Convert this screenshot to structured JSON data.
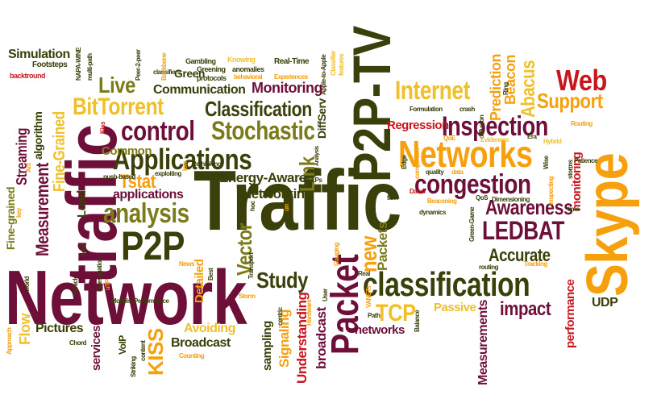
{
  "colors": {
    "dark_olive": "#3b3f0a",
    "maroon": "#6e0f3a",
    "orange": "#f5a00c",
    "gold": "#f0c02a",
    "red": "#c8161d",
    "olive": "#7b7b1a"
  },
  "cloud": {
    "words": [
      {
        "text": "Traffic",
        "c": "dark_olive"
      },
      {
        "text": "Network",
        "c": "maroon"
      },
      {
        "text": "traffic",
        "c": "maroon"
      },
      {
        "text": "P2P-TV",
        "c": "dark_olive"
      },
      {
        "text": "Skype",
        "c": "orange"
      },
      {
        "text": "Networks",
        "c": "orange"
      },
      {
        "text": "classification",
        "c": "dark_olive"
      },
      {
        "text": "P2P",
        "c": "dark_olive"
      },
      {
        "text": "Packet",
        "c": "maroon"
      },
      {
        "text": "Applications",
        "c": "dark_olive"
      },
      {
        "text": "control",
        "c": "maroon"
      },
      {
        "text": "congestion",
        "c": "maroon"
      },
      {
        "text": "Inspection",
        "c": "maroon"
      },
      {
        "text": "Stochastic",
        "c": "olive"
      },
      {
        "text": "BitTorrent",
        "c": "gold"
      },
      {
        "text": "Classification",
        "c": "dark_olive"
      },
      {
        "text": "analysis",
        "c": "olive"
      },
      {
        "text": "LEDBAT",
        "c": "maroon"
      },
      {
        "text": "Web",
        "c": "red"
      },
      {
        "text": "Support",
        "c": "orange"
      },
      {
        "text": "Internet",
        "c": "gold"
      },
      {
        "text": "Study",
        "c": "dark_olive"
      },
      {
        "text": "TCP",
        "c": "gold"
      },
      {
        "text": "impact",
        "c": "maroon"
      },
      {
        "text": "Awareness",
        "c": "maroon"
      },
      {
        "text": "Accurate",
        "c": "dark_olive"
      },
      {
        "text": "Abacus",
        "c": "gold"
      },
      {
        "text": "Tstat",
        "c": "orange"
      },
      {
        "text": "Live",
        "c": "olive"
      },
      {
        "text": "Vector",
        "c": "olive"
      },
      {
        "text": "Link",
        "c": "olive"
      },
      {
        "text": "new",
        "c": "orange"
      },
      {
        "text": "Measurement",
        "c": "maroon"
      },
      {
        "text": "Fine-Grained",
        "c": "gold"
      },
      {
        "text": "Streaming",
        "c": "maroon"
      },
      {
        "text": "Communication",
        "c": "dark_olive"
      },
      {
        "text": "Monitoring",
        "c": "maroon"
      },
      {
        "text": "Energy-Aware",
        "c": "dark_olive"
      },
      {
        "text": "Networking",
        "c": "dark_olive"
      },
      {
        "text": "applications",
        "c": "maroon"
      },
      {
        "text": "Common",
        "c": "olive"
      },
      {
        "text": "Simulation",
        "c": "dark_olive"
      },
      {
        "text": "Prediction",
        "c": "orange"
      },
      {
        "text": "Beacon",
        "c": "orange"
      },
      {
        "text": "Regression",
        "c": "red"
      },
      {
        "text": "monitoring",
        "c": "red"
      },
      {
        "text": "Skype-small",
        "c": "orange"
      },
      {
        "text": "KISS",
        "c": "orange"
      },
      {
        "text": "Broadcast",
        "c": "dark_olive"
      },
      {
        "text": "Avoiding",
        "c": "gold"
      },
      {
        "text": "Pictures",
        "c": "dark_olive"
      },
      {
        "text": "Flow",
        "c": "gold"
      },
      {
        "text": "networks",
        "c": "maroon"
      },
      {
        "text": "Passive",
        "c": "gold"
      },
      {
        "text": "UDP",
        "c": "dark_olive"
      },
      {
        "text": "Packets",
        "c": "olive"
      },
      {
        "text": "Signaling",
        "c": "orange"
      },
      {
        "text": "Understanding",
        "c": "red"
      },
      {
        "text": "broadcast",
        "c": "maroon"
      },
      {
        "text": "Measurements",
        "c": "maroon"
      },
      {
        "text": "performance",
        "c": "red"
      },
      {
        "text": "sampling",
        "c": "dark_olive"
      },
      {
        "text": "services",
        "c": "maroon"
      },
      {
        "text": "Detailed",
        "c": "orange"
      },
      {
        "text": "Load",
        "c": "dark_olive"
      },
      {
        "text": "Fine-grained",
        "c": "olive"
      },
      {
        "text": "algorithm",
        "c": "dark_olive"
      },
      {
        "text": "DiffServ",
        "c": "dark_olive"
      },
      {
        "text": "Green",
        "c": "dark_olive"
      },
      {
        "text": "VoIP",
        "c": "dark_olive"
      },
      {
        "text": "Footsteps",
        "c": "dark_olive"
      },
      {
        "text": "backtround",
        "c": "red"
      },
      {
        "text": "Real-Time",
        "c": "dark_olive"
      },
      {
        "text": "Gambling",
        "c": "dark_olive"
      },
      {
        "text": "Knowing",
        "c": "gold"
      },
      {
        "text": "Greening",
        "c": "dark_olive"
      },
      {
        "text": "anomalies",
        "c": "dark_olive"
      },
      {
        "text": "protocols",
        "c": "dark_olive"
      },
      {
        "text": "Experiences",
        "c": "orange"
      },
      {
        "text": "behavioral",
        "c": "orange"
      },
      {
        "text": "classifiers",
        "c": "dark_olive"
      },
      {
        "text": "Backbone",
        "c": "orange"
      },
      {
        "text": "Peer-2-peer",
        "c": "dark_olive"
      },
      {
        "text": "NAPA-WINE",
        "c": "dark_olive"
      },
      {
        "text": "multi-path",
        "c": "dark_olive"
      },
      {
        "text": "Apple-to-Apple",
        "c": "dark_olive"
      },
      {
        "text": "Classifier",
        "c": "gold"
      },
      {
        "text": "features",
        "c": "gold"
      },
      {
        "text": "Formulation",
        "c": "dark_olive"
      },
      {
        "text": "crash",
        "c": "dark_olive"
      },
      {
        "text": "Ring",
        "c": "dark_olive"
      },
      {
        "text": "diffusion",
        "c": "dark_olive"
      },
      {
        "text": "Routing",
        "c": "orange"
      },
      {
        "text": "Evidences",
        "c": "gold"
      },
      {
        "text": "Era",
        "c": "dark_olive"
      },
      {
        "text": "Hybrid",
        "c": "gold"
      },
      {
        "text": "Patience",
        "c": "dark_olive"
      },
      {
        "text": "storms",
        "c": "dark_olive"
      },
      {
        "text": "Wise",
        "c": "dark_olive"
      },
      {
        "text": "QoE",
        "c": "orange"
      },
      {
        "text": "completion",
        "c": "orange"
      },
      {
        "text": "quality",
        "c": "dark_olive"
      },
      {
        "text": "data",
        "c": "orange"
      },
      {
        "text": "Edge",
        "c": "dark_olive"
      },
      {
        "text": "Analysis",
        "c": "dark_olive"
      },
      {
        "text": "Rethinking",
        "c": "dark_olive"
      },
      {
        "text": "low",
        "c": "orange"
      },
      {
        "text": "push-based",
        "c": "dark_olive"
      },
      {
        "text": "exploiting",
        "c": "dark_olive"
      },
      {
        "text": "HELPs",
        "c": "dark_olive"
      },
      {
        "text": "hoc",
        "c": "dark_olive"
      },
      {
        "text": "un",
        "c": "orange"
      },
      {
        "text": "Beaconing",
        "c": "orange"
      },
      {
        "text": "Dawn",
        "c": "red"
      },
      {
        "text": "flow",
        "c": "dark_olive"
      },
      {
        "text": "dynamics",
        "c": "dark_olive"
      },
      {
        "text": "QoS",
        "c": "dark_olive"
      },
      {
        "text": "Dimensioning",
        "c": "dark_olive"
      },
      {
        "text": "time",
        "c": "dark_olive"
      },
      {
        "text": "inspecting",
        "c": "orange"
      },
      {
        "text": "Green-Game",
        "c": "dark_olive"
      },
      {
        "text": "Tracking",
        "c": "orange"
      },
      {
        "text": "routing",
        "c": "dark_olive"
      },
      {
        "text": "Real",
        "c": "dark_olive"
      },
      {
        "text": "User",
        "c": "dark_olive"
      },
      {
        "text": "VANETs",
        "c": "orange"
      },
      {
        "text": "Path",
        "c": "dark_olive"
      },
      {
        "text": "Balance",
        "c": "dark_olive"
      },
      {
        "text": "Gauging",
        "c": "orange"
      },
      {
        "text": "Hardware",
        "c": "orange"
      },
      {
        "text": "centric",
        "c": "dark_olive"
      },
      {
        "text": "Storm",
        "c": "orange"
      },
      {
        "text": "Transport",
        "c": "dark_olive"
      },
      {
        "text": "Best",
        "c": "dark_olive"
      },
      {
        "text": "News",
        "c": "orange"
      },
      {
        "text": "Performance",
        "c": "dark_olive"
      },
      {
        "text": "Models",
        "c": "dark_olive"
      },
      {
        "text": "uTP",
        "c": "orange"
      },
      {
        "text": "Investigation",
        "c": "dark_olive"
      },
      {
        "text": "need",
        "c": "dark_olive"
      },
      {
        "text": "Vehicle",
        "c": "dark_olive"
      },
      {
        "text": "world",
        "c": "dark_olive"
      },
      {
        "text": "key",
        "c": "orange"
      },
      {
        "text": "Act",
        "c": "orange"
      },
      {
        "text": "Approach",
        "c": "orange"
      },
      {
        "text": "Chord",
        "c": "dark_olive"
      },
      {
        "text": "Striking",
        "c": "dark_olive"
      },
      {
        "text": "content",
        "c": "dark_olive"
      },
      {
        "text": "Counting",
        "c": "orange"
      },
      {
        "text": "Kiss",
        "c": "red"
      }
    ]
  }
}
